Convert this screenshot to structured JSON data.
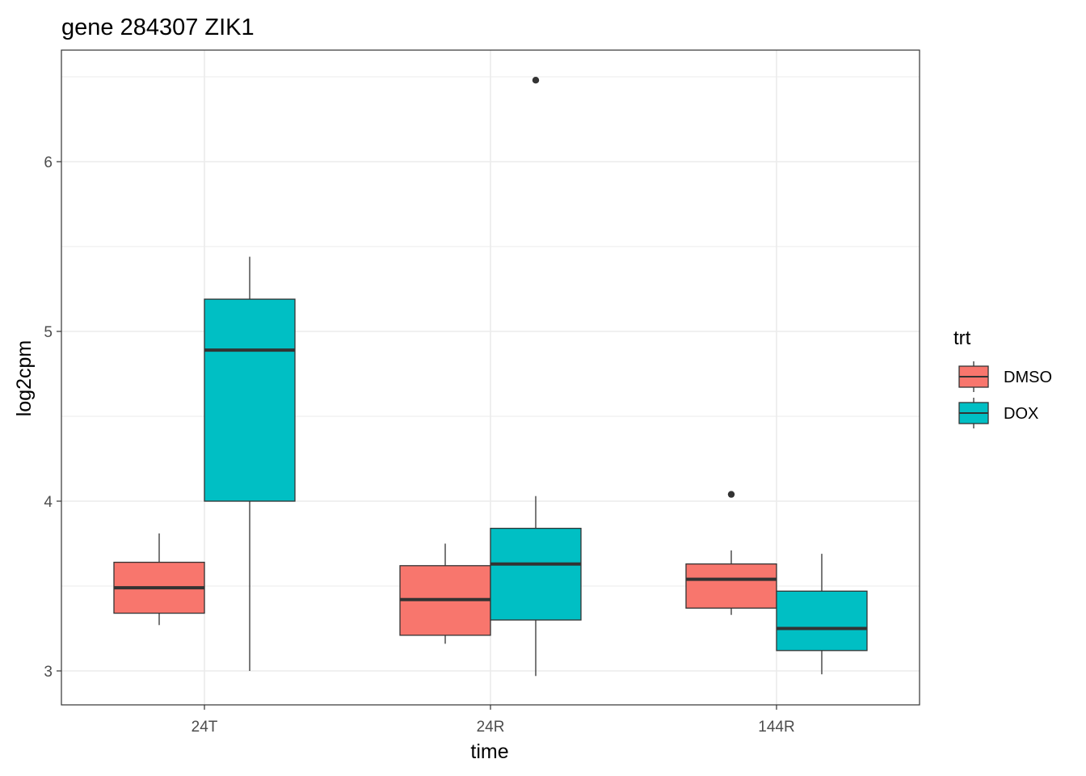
{
  "chart_data": {
    "type": "boxplot",
    "title": "gene 284307 ZIK1",
    "xlabel": "time",
    "ylabel": "log2cpm",
    "categories": [
      "24T",
      "24R",
      "144R"
    ],
    "ylim": [
      2.8,
      6.65
    ],
    "y_ticks": [
      3,
      4,
      5,
      6
    ],
    "y_tick_labels": [
      "3",
      "4",
      "5",
      "6"
    ],
    "grid": true,
    "legend": {
      "title": "trt",
      "position": "right"
    },
    "series": [
      {
        "name": "DMSO",
        "color": "#F8766D",
        "boxes": [
          {
            "category": "24T",
            "whisker_low": 3.27,
            "q1": 3.34,
            "median": 3.49,
            "q3": 3.64,
            "whisker_high": 3.81,
            "outliers": []
          },
          {
            "category": "24R",
            "whisker_low": 3.16,
            "q1": 3.21,
            "median": 3.42,
            "q3": 3.62,
            "whisker_high": 3.75,
            "outliers": []
          },
          {
            "category": "144R",
            "whisker_low": 3.33,
            "q1": 3.37,
            "median": 3.54,
            "q3": 3.63,
            "whisker_high": 3.71,
            "outliers": [
              4.04
            ]
          }
        ]
      },
      {
        "name": "DOX",
        "color": "#00BFC4",
        "boxes": [
          {
            "category": "24T",
            "whisker_low": 3.0,
            "q1": 4.0,
            "median": 4.89,
            "q3": 5.19,
            "whisker_high": 5.44,
            "outliers": []
          },
          {
            "category": "24R",
            "whisker_low": 2.97,
            "q1": 3.3,
            "median": 3.63,
            "q3": 3.84,
            "whisker_high": 4.03,
            "outliers": [
              6.48
            ]
          },
          {
            "category": "144R",
            "whisker_low": 2.98,
            "q1": 3.12,
            "median": 3.25,
            "q3": 3.47,
            "whisker_high": 3.69,
            "outliers": []
          }
        ]
      }
    ]
  }
}
